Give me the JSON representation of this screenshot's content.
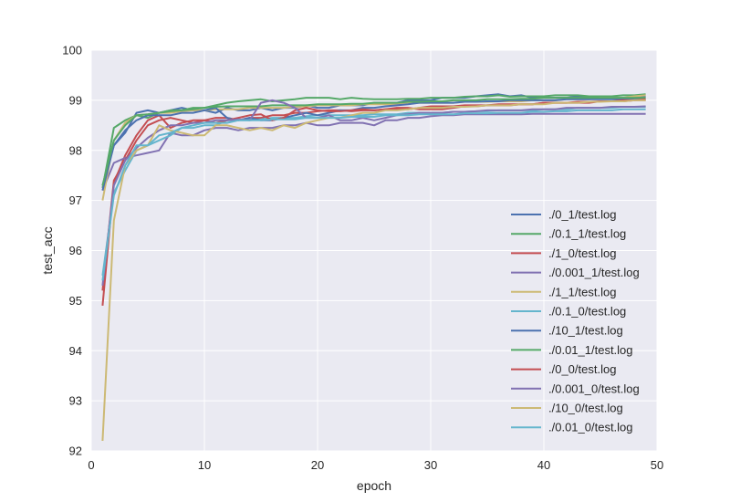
{
  "chart_data": {
    "type": "line",
    "title": "",
    "xlabel": "epoch",
    "ylabel": "test_acc",
    "xlim": [
      0,
      50
    ],
    "ylim": [
      92,
      100
    ],
    "xticks": [
      0,
      10,
      20,
      30,
      40,
      50
    ],
    "yticks": [
      92,
      93,
      94,
      95,
      96,
      97,
      98,
      99,
      100
    ],
    "grid": true,
    "background": "#EAEAF2",
    "gridColor": "#ffffff",
    "legend_position": "lower-right",
    "x": [
      1,
      2,
      3,
      4,
      5,
      6,
      7,
      8,
      9,
      10,
      11,
      12,
      13,
      14,
      15,
      16,
      17,
      18,
      19,
      20,
      21,
      22,
      23,
      24,
      25,
      26,
      27,
      28,
      29,
      30,
      31,
      32,
      33,
      34,
      35,
      36,
      37,
      38,
      39,
      40,
      41,
      42,
      43,
      44,
      45,
      46,
      47,
      48,
      49
    ],
    "series": [
      {
        "name": "./0_1/test.log",
        "color": "#4C72B0",
        "values": [
          97.3,
          98.1,
          98.35,
          98.75,
          98.8,
          98.75,
          98.8,
          98.85,
          98.8,
          98.8,
          98.75,
          98.85,
          98.8,
          98.8,
          98.85,
          98.8,
          98.85,
          98.85,
          98.9,
          98.85,
          98.85,
          98.9,
          98.9,
          98.9,
          98.95,
          98.95,
          98.95,
          99.0,
          99.0,
          99.0,
          99.05,
          99.05,
          99.05,
          99.08,
          99.1,
          99.12,
          99.08,
          99.1,
          99.05,
          99.05,
          99.05,
          99.05,
          99.08,
          99.05,
          99.05,
          99.05,
          99.05,
          99.05,
          99.08
        ]
      },
      {
        "name": "./0.1_1/test.log",
        "color": "#55A868",
        "values": [
          97.25,
          98.45,
          98.6,
          98.7,
          98.65,
          98.75,
          98.8,
          98.8,
          98.85,
          98.85,
          98.9,
          98.95,
          98.98,
          99.0,
          99.02,
          98.98,
          99.0,
          99.02,
          99.05,
          99.05,
          99.05,
          99.02,
          99.05,
          99.03,
          99.02,
          99.02,
          99.02,
          99.03,
          99.03,
          99.05,
          99.05,
          99.05,
          99.07,
          99.08,
          99.08,
          99.1,
          99.07,
          99.08,
          99.08,
          99.08,
          99.1,
          99.1,
          99.1,
          99.08,
          99.08,
          99.08,
          99.1,
          99.1,
          99.12
        ]
      },
      {
        "name": "./1_0/test.log",
        "color": "#C44E52",
        "values": [
          94.9,
          97.35,
          97.9,
          98.3,
          98.6,
          98.7,
          98.45,
          98.55,
          98.6,
          98.6,
          98.65,
          98.65,
          98.6,
          98.65,
          98.65,
          98.7,
          98.7,
          98.75,
          98.75,
          98.78,
          98.8,
          98.8,
          98.78,
          98.8,
          98.8,
          98.82,
          98.82,
          98.82,
          98.85,
          98.88,
          98.88,
          98.88,
          98.9,
          98.9,
          98.9,
          98.92,
          98.92,
          98.92,
          98.92,
          98.95,
          98.95,
          98.95,
          98.97,
          98.97,
          98.98,
          98.98,
          98.98,
          99.0,
          99.0
        ]
      },
      {
        "name": "./0.001_1/test.log",
        "color": "#8172B2",
        "values": [
          97.2,
          97.75,
          97.85,
          97.9,
          97.95,
          98.0,
          98.35,
          98.3,
          98.3,
          98.4,
          98.45,
          98.45,
          98.4,
          98.45,
          98.45,
          98.45,
          98.5,
          98.5,
          98.55,
          98.5,
          98.5,
          98.55,
          98.55,
          98.55,
          98.5,
          98.6,
          98.6,
          98.65,
          98.65,
          98.68,
          98.7,
          98.7,
          98.72,
          98.72,
          98.72,
          98.72,
          98.72,
          98.72,
          98.73,
          98.73,
          98.73,
          98.73,
          98.73,
          98.73,
          98.73,
          98.73,
          98.73,
          98.73,
          98.73
        ]
      },
      {
        "name": "./1_1/test.log",
        "color": "#CCB974",
        "values": [
          97.0,
          98.2,
          98.55,
          98.7,
          98.72,
          98.75,
          98.75,
          98.78,
          98.8,
          98.8,
          98.82,
          98.82,
          98.82,
          98.85,
          98.85,
          98.85,
          98.85,
          98.87,
          98.88,
          98.9,
          98.9,
          98.9,
          98.9,
          98.92,
          98.92,
          98.92,
          98.92,
          98.95,
          98.95,
          98.95,
          98.95,
          98.95,
          98.97,
          98.97,
          98.97,
          98.98,
          98.98,
          98.98,
          99.0,
          99.0,
          99.0,
          99.02,
          99.02,
          99.02,
          99.05,
          99.05,
          99.05,
          99.08,
          99.1
        ]
      },
      {
        "name": "./0.1_0/test.log",
        "color": "#64B5CD",
        "values": [
          95.5,
          97.15,
          97.6,
          98.0,
          98.1,
          98.2,
          98.3,
          98.45,
          98.45,
          98.5,
          98.5,
          98.6,
          98.6,
          98.6,
          98.62,
          98.65,
          98.65,
          98.65,
          98.68,
          98.7,
          98.7,
          98.7,
          98.7,
          98.7,
          98.72,
          98.72,
          98.72,
          98.75,
          98.75,
          98.75,
          98.75,
          98.77,
          98.77,
          98.78,
          98.78,
          98.8,
          98.8,
          98.8,
          98.8,
          98.82,
          98.82,
          98.82,
          98.85,
          98.85,
          98.85,
          98.85,
          98.87,
          98.87,
          98.87
        ]
      },
      {
        "name": "./10_1/test.log",
        "color": "#4C72B0",
        "values": [
          97.2,
          98.1,
          98.4,
          98.6,
          98.7,
          98.7,
          98.7,
          98.75,
          98.75,
          98.8,
          98.85,
          98.65,
          98.6,
          98.65,
          98.6,
          98.6,
          98.65,
          98.7,
          98.75,
          98.7,
          98.75,
          98.8,
          98.8,
          98.85,
          98.85,
          98.88,
          98.9,
          98.92,
          98.95,
          98.95,
          98.95,
          98.95,
          98.97,
          98.97,
          98.98,
          98.98,
          99.0,
          99.0,
          99.0,
          99.0,
          99.0,
          99.02,
          99.02,
          99.02,
          99.02,
          99.02,
          99.02,
          99.03,
          99.03
        ]
      },
      {
        "name": "./0.01_1/test.log",
        "color": "#55A868",
        "values": [
          97.3,
          98.2,
          98.5,
          98.7,
          98.72,
          98.75,
          98.78,
          98.8,
          98.82,
          98.85,
          98.87,
          98.88,
          98.88,
          98.88,
          98.88,
          98.9,
          98.9,
          98.9,
          98.9,
          98.92,
          98.92,
          98.92,
          98.93,
          98.93,
          98.95,
          98.95,
          98.95,
          98.97,
          98.97,
          98.98,
          98.98,
          99.0,
          99.0,
          99.0,
          99.02,
          99.02,
          99.02,
          99.03,
          99.03,
          99.05,
          99.05,
          99.05,
          99.05,
          99.05,
          99.05,
          99.05,
          99.05,
          99.05,
          99.05
        ]
      },
      {
        "name": "./0_0/test.log",
        "color": "#C44E52",
        "values": [
          95.2,
          97.4,
          97.8,
          98.2,
          98.5,
          98.6,
          98.65,
          98.6,
          98.55,
          98.6,
          98.55,
          98.6,
          98.65,
          98.7,
          98.72,
          98.6,
          98.65,
          98.8,
          98.85,
          98.8,
          98.78,
          98.78,
          98.8,
          98.82,
          98.8,
          98.82,
          98.85,
          98.85,
          98.82,
          98.82,
          98.82,
          98.85,
          98.88,
          98.88,
          98.9,
          98.9,
          98.9,
          98.92,
          98.92,
          98.95,
          98.95,
          98.95,
          98.95,
          98.95,
          98.98,
          98.98,
          99.0,
          99.0,
          99.02
        ]
      },
      {
        "name": "./0.001_0/test.log",
        "color": "#8172B2",
        "values": [
          95.3,
          97.3,
          97.8,
          98.05,
          98.25,
          98.4,
          98.5,
          98.5,
          98.55,
          98.55,
          98.6,
          98.6,
          98.62,
          98.6,
          98.95,
          99.0,
          98.95,
          98.85,
          98.65,
          98.65,
          98.7,
          98.6,
          98.6,
          98.65,
          98.6,
          98.65,
          98.7,
          98.72,
          98.75,
          98.75,
          98.75,
          98.77,
          98.77,
          98.78,
          98.8,
          98.8,
          98.8,
          98.8,
          98.82,
          98.82,
          98.82,
          98.85,
          98.85,
          98.85,
          98.85,
          98.87,
          98.87,
          98.87,
          98.88
        ]
      },
      {
        "name": "./10_0/test.log",
        "color": "#CCB974",
        "values": [
          92.2,
          96.6,
          97.7,
          98.0,
          98.1,
          98.5,
          98.4,
          98.35,
          98.3,
          98.3,
          98.5,
          98.5,
          98.45,
          98.4,
          98.45,
          98.4,
          98.5,
          98.45,
          98.55,
          98.6,
          98.65,
          98.65,
          98.7,
          98.75,
          98.75,
          98.8,
          98.8,
          98.82,
          98.85,
          98.85,
          98.85,
          98.87,
          98.87,
          98.88,
          98.9,
          98.9,
          98.9,
          98.92,
          98.92,
          98.92,
          98.95,
          98.95,
          98.95,
          98.97,
          98.97,
          98.98,
          98.98,
          99.0,
          99.0
        ]
      },
      {
        "name": "./0.01_0/test.log",
        "color": "#64B5CD",
        "values": [
          95.4,
          97.1,
          97.7,
          98.1,
          98.1,
          98.3,
          98.35,
          98.45,
          98.5,
          98.55,
          98.55,
          98.55,
          98.6,
          98.6,
          98.6,
          98.62,
          98.62,
          98.62,
          98.65,
          98.65,
          98.65,
          98.65,
          98.67,
          98.67,
          98.67,
          98.7,
          98.7,
          98.7,
          98.72,
          98.72,
          98.72,
          98.72,
          98.74,
          98.74,
          98.74,
          98.75,
          98.75,
          98.75,
          98.77,
          98.77,
          98.78,
          98.78,
          98.8,
          98.8,
          98.8,
          98.8,
          98.82,
          98.82,
          98.82
        ]
      }
    ]
  }
}
